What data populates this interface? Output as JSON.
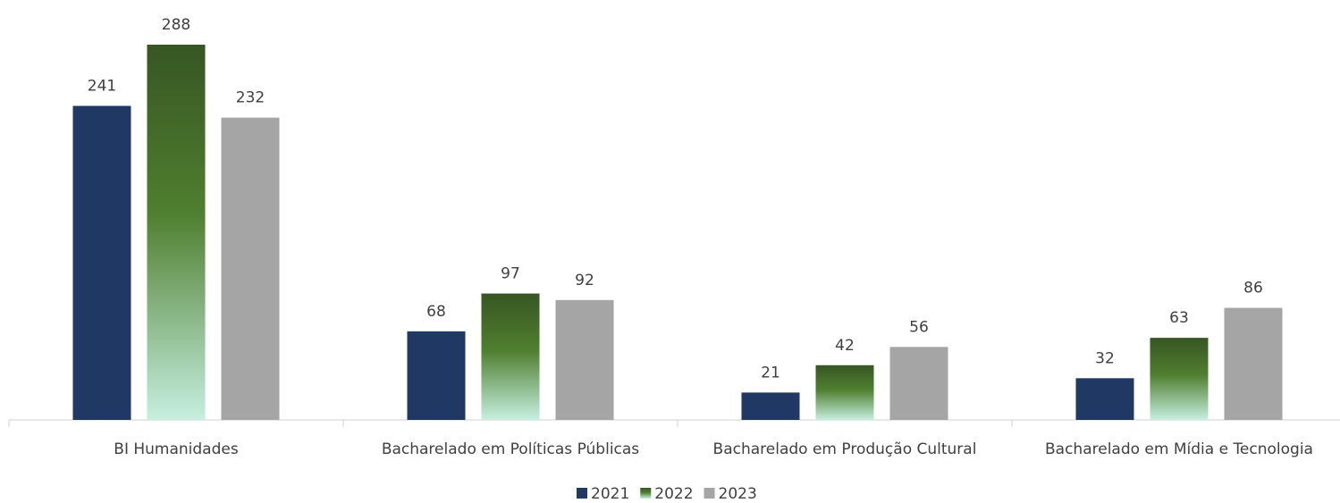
{
  "chart_data": {
    "type": "bar",
    "categories": [
      "BI Humanidades",
      "Bacharelado em Políticas Públicas",
      "Bacharelado em Produção Cultural",
      "Bacharelado em Mídia e Tecnologia"
    ],
    "series": [
      {
        "name": "2021",
        "color": "#203864",
        "values": [
          241,
          68,
          21,
          32
        ]
      },
      {
        "name": "2022",
        "color": "#375623",
        "values": [
          288,
          97,
          42,
          63
        ]
      },
      {
        "name": "2023",
        "color": "#a5a5a5",
        "values": [
          232,
          92,
          56,
          86
        ]
      }
    ],
    "legend": "bottom"
  }
}
